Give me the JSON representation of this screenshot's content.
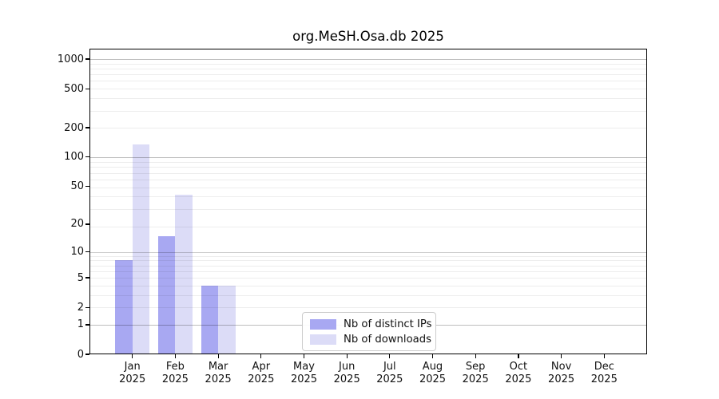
{
  "chart_data": {
    "type": "bar",
    "title": "org.MeSH.Osa.db 2025",
    "x_month_labels": [
      "Jan",
      "Feb",
      "Mar",
      "Apr",
      "May",
      "Jun",
      "Jul",
      "Aug",
      "Sep",
      "Oct",
      "Nov",
      "Dec"
    ],
    "x_year_label": "2025",
    "series": [
      {
        "name": "Nb of distinct IPs",
        "color": "#a8a8f2",
        "values": [
          8,
          15,
          4,
          0,
          0,
          0,
          0,
          0,
          0,
          0,
          0,
          0
        ]
      },
      {
        "name": "Nb of downloads",
        "color": "#dcdcf7",
        "values": [
          134,
          41,
          4,
          0,
          0,
          0,
          0,
          0,
          0,
          0,
          0,
          0
        ]
      }
    ],
    "y_axis": {
      "scale": "log1p",
      "tick_values": [
        0,
        1,
        2,
        5,
        10,
        20,
        50,
        100,
        200,
        500,
        1000
      ],
      "tick_labels": [
        "0",
        "1",
        "2",
        "5",
        "10",
        "20",
        "50",
        "100",
        "200",
        "500",
        "1000"
      ],
      "ylim_top": 1275,
      "major_grid_values": [
        1,
        10,
        100,
        1000
      ]
    },
    "grid": {
      "enabled": true,
      "major_color": "rgba(0,0,0,0.20)",
      "minor_color": "rgba(0,0,0,0.07)"
    },
    "legend": {
      "position": "lower center"
    },
    "frame_color": "#000000",
    "background_color": "#ffffff"
  }
}
